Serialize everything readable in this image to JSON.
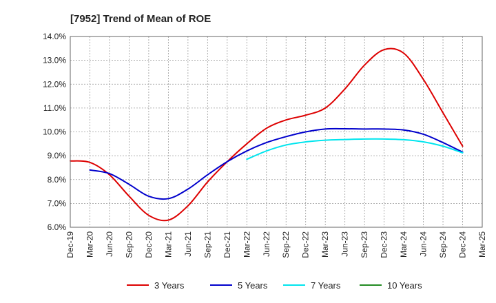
{
  "chart_data": {
    "type": "line",
    "title": "[7952]  Trend of Mean of ROE",
    "xlabel": "",
    "ylabel": "",
    "categories": [
      "Dec-19",
      "Mar-20",
      "Jun-20",
      "Sep-20",
      "Dec-20",
      "Mar-21",
      "Jun-21",
      "Sep-21",
      "Dec-21",
      "Mar-22",
      "Jun-22",
      "Sep-22",
      "Dec-22",
      "Mar-23",
      "Jun-23",
      "Sep-23",
      "Dec-23",
      "Mar-24",
      "Jun-24",
      "Sep-24",
      "Dec-24",
      "Mar-25"
    ],
    "ylim": [
      6.0,
      14.0
    ],
    "yticks": [
      6.0,
      7.0,
      8.0,
      9.0,
      10.0,
      11.0,
      12.0,
      13.0,
      14.0
    ],
    "ytick_labels": [
      "6.0%",
      "7.0%",
      "8.0%",
      "9.0%",
      "10.0%",
      "11.0%",
      "12.0%",
      "13.0%",
      "14.0%"
    ],
    "grid": true,
    "series": [
      {
        "name": "3 Years",
        "color": "#dd0000",
        "values": [
          8.78,
          8.72,
          8.2,
          7.3,
          6.5,
          6.3,
          6.9,
          7.9,
          8.75,
          9.5,
          10.15,
          10.5,
          10.7,
          11.0,
          11.8,
          12.8,
          13.45,
          13.3,
          12.2,
          10.8,
          9.4,
          null
        ]
      },
      {
        "name": "5 Years",
        "color": "#0000cc",
        "values": [
          null,
          8.4,
          8.25,
          7.8,
          7.3,
          7.2,
          7.6,
          8.2,
          8.75,
          9.2,
          9.55,
          9.8,
          10.0,
          10.12,
          10.13,
          10.12,
          10.12,
          10.08,
          9.9,
          9.55,
          9.15,
          null
        ]
      },
      {
        "name": "7 Years",
        "color": "#00e5ee",
        "values": [
          null,
          null,
          null,
          null,
          null,
          null,
          null,
          null,
          null,
          8.85,
          9.2,
          9.45,
          9.58,
          9.65,
          9.68,
          9.7,
          9.7,
          9.67,
          9.58,
          9.4,
          9.12,
          null
        ]
      },
      {
        "name": "10 Years",
        "color": "#228b22",
        "values": [
          null,
          null,
          null,
          null,
          null,
          null,
          null,
          null,
          null,
          null,
          null,
          null,
          null,
          null,
          null,
          null,
          null,
          null,
          null,
          null,
          null,
          null
        ]
      }
    ]
  }
}
